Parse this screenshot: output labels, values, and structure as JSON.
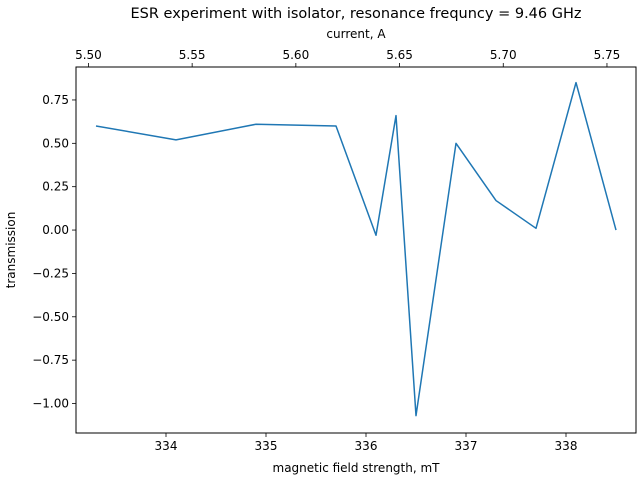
{
  "chart_data": {
    "type": "line",
    "title": "ESR experiment with isolator, resonance frequncy = 9.46 GHz",
    "xlabel": "magnetic field strength, mT",
    "ylabel": "transmission",
    "x2label": "current, A",
    "xlim": [
      333.1,
      338.7
    ],
    "ylim": [
      -1.17,
      0.94
    ],
    "x_ticks": [
      334,
      335,
      336,
      337,
      338
    ],
    "x_tick_labels": [
      "334",
      "335",
      "336",
      "337",
      "338"
    ],
    "y_ticks": [
      0.75,
      0.5,
      0.25,
      0.0,
      -0.25,
      -0.5,
      -0.75,
      -1.0
    ],
    "y_tick_labels": [
      "0.75",
      "0.50",
      "0.25",
      "0.00",
      "−0.25",
      "−0.50",
      "−0.75",
      "−1.00"
    ],
    "x2_ticks": [
      5.5,
      5.55,
      5.6,
      5.65,
      5.7,
      5.75
    ],
    "x2_tick_labels": [
      "5.50",
      "5.55",
      "5.60",
      "5.65",
      "5.70",
      "5.75"
    ],
    "x2_lim": [
      5.494,
      5.764
    ],
    "grid": false,
    "series": [
      {
        "color": "#1f77b4",
        "x": [
          333.3,
          334.1,
          334.9,
          335.7,
          336.1,
          336.3,
          336.5,
          336.9,
          337.3,
          337.7,
          338.1,
          338.5
        ],
        "y": [
          0.6,
          0.52,
          0.61,
          0.6,
          -0.03,
          0.66,
          -1.07,
          0.5,
          0.17,
          0.01,
          0.85,
          0.0
        ]
      }
    ]
  }
}
